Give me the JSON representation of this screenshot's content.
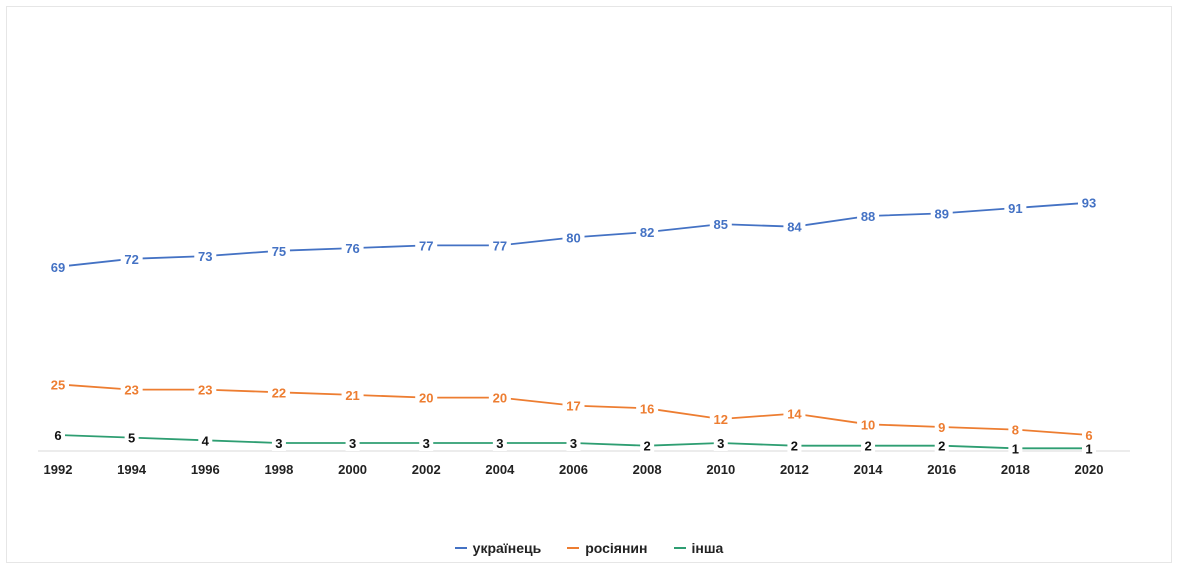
{
  "chart_data": {
    "type": "line",
    "title": "",
    "xlabel": "",
    "ylabel": "",
    "categories": [
      "1992",
      "1994",
      "1996",
      "1998",
      "2000",
      "2002",
      "2004",
      "2006",
      "2008",
      "2010",
      "2012",
      "2014",
      "2016",
      "2018",
      "2020"
    ],
    "series": [
      {
        "name": "українець",
        "color": "#4472C4",
        "values": [
          69,
          72,
          73,
          75,
          76,
          77,
          77,
          80,
          82,
          85,
          84,
          88,
          89,
          91,
          93
        ]
      },
      {
        "name": "росіянин",
        "color": "#ED7D31",
        "values": [
          25,
          23,
          23,
          22,
          21,
          20,
          20,
          17,
          16,
          12,
          14,
          10,
          9,
          8,
          6
        ]
      },
      {
        "name": "інша",
        "color": "#2E9E72",
        "values": [
          6,
          5,
          4,
          3,
          3,
          3,
          3,
          3,
          2,
          3,
          2,
          2,
          2,
          1,
          1
        ]
      }
    ],
    "ylim": [
      0,
      100
    ],
    "grid": false,
    "legend_position": "bottom",
    "label_color_third_series": "#111111"
  }
}
